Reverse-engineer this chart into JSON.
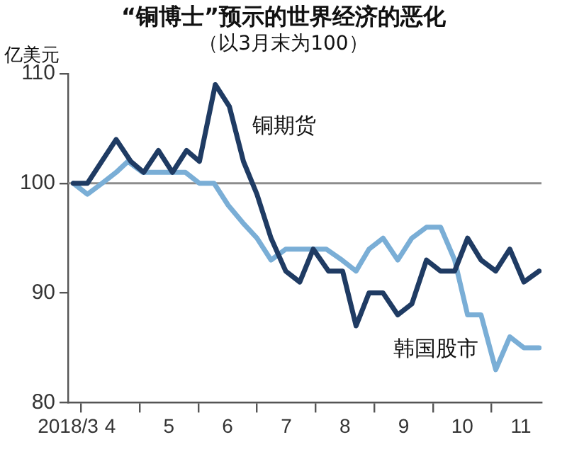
{
  "chart_data": {
    "type": "line",
    "title": "“铜博士”预示的世界经济的恶化",
    "subtitle": "（以3月末为100）",
    "ylabel": "亿美元",
    "xlim": [
      3.78,
      11.85
    ],
    "xticks": [
      {
        "value": 3.78,
        "label": "2018/3"
      },
      {
        "value": 4,
        "label": null
      },
      {
        "value": 4.5,
        "label": "4"
      },
      {
        "value": 5,
        "label": null
      },
      {
        "value": 5.5,
        "label": "5"
      },
      {
        "value": 6,
        "label": null
      },
      {
        "value": 6.5,
        "label": "6"
      },
      {
        "value": 7,
        "label": null
      },
      {
        "value": 7.5,
        "label": "7"
      },
      {
        "value": 8,
        "label": null
      },
      {
        "value": 8.5,
        "label": "8"
      },
      {
        "value": 9,
        "label": null
      },
      {
        "value": 9.5,
        "label": "9"
      },
      {
        "value": 10,
        "label": null
      },
      {
        "value": 10.5,
        "label": "10"
      },
      {
        "value": 11,
        "label": null
      },
      {
        "value": 11.5,
        "label": "11"
      }
    ],
    "ylim": [
      80,
      110
    ],
    "yticks": [
      80,
      90,
      100,
      110
    ],
    "grid": false,
    "legend": false,
    "marker": "none",
    "line_style": "solid",
    "ref_lines": [
      {
        "axis": "y",
        "value": 100,
        "label": null,
        "color": "#8c8c8c"
      }
    ],
    "series": [
      {
        "name": "铜期货",
        "color": "#1f3b63",
        "x": [
          3.87,
          4.11,
          4.6,
          4.85,
          5.07,
          5.32,
          5.56,
          5.8,
          6.02,
          6.29,
          6.53,
          6.77,
          7.0,
          7.24,
          7.49,
          7.73,
          7.96,
          8.22,
          8.46,
          8.69,
          8.91,
          9.15,
          9.4,
          9.64,
          9.89,
          10.13,
          10.37,
          10.59,
          10.82,
          11.07,
          11.31,
          11.55,
          11.81
        ],
        "values": [
          100,
          100,
          104,
          102,
          101,
          103,
          101,
          103,
          102,
          109,
          107,
          102,
          99,
          95,
          92,
          91,
          94,
          92,
          92,
          87,
          90,
          90,
          88,
          89,
          93,
          92,
          92,
          95,
          93,
          92,
          94,
          91,
          92
        ]
      },
      {
        "name": "韩国股市",
        "color": "#7aaed6",
        "x": [
          3.87,
          4.11,
          4.36,
          4.6,
          4.8,
          5.05,
          5.54,
          5.78,
          6.02,
          6.27,
          6.51,
          6.76,
          7.0,
          7.24,
          7.49,
          7.73,
          7.98,
          8.18,
          8.45,
          8.69,
          8.91,
          9.15,
          9.4,
          9.64,
          9.89,
          10.13,
          10.37,
          10.59,
          10.82,
          11.07,
          11.31,
          11.55,
          11.81
        ],
        "values": [
          100,
          99,
          100,
          101,
          102,
          101,
          101,
          101,
          100,
          100,
          98,
          96.4,
          95,
          93,
          94,
          94,
          94,
          94,
          93,
          92,
          94,
          95,
          93,
          95,
          96,
          96,
          93,
          88,
          88,
          83,
          86,
          85,
          85
        ]
      }
    ]
  }
}
